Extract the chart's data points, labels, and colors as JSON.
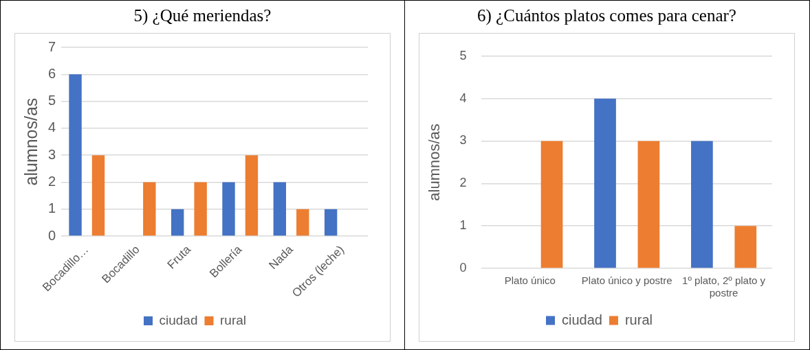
{
  "chart_data": [
    {
      "type": "bar",
      "title": "5)  ¿Qué meriendas?",
      "ylabel": "alumnos/as",
      "categories": [
        "Bocadillo…",
        "Bocadillo",
        "Fruta",
        "Bollería",
        "Nada",
        "Otros (leche)"
      ],
      "series": [
        {
          "name": "ciudad",
          "color": "#4472c4",
          "values": [
            6,
            0,
            1,
            2,
            2,
            1
          ]
        },
        {
          "name": "rural",
          "color": "#ed7d31",
          "values": [
            3,
            2,
            2,
            3,
            1,
            0
          ]
        }
      ],
      "ylim": [
        0,
        7
      ],
      "yticks": [
        0,
        1,
        2,
        3,
        4,
        5,
        6,
        7
      ],
      "grid": "y",
      "legend": "bottom"
    },
    {
      "type": "bar",
      "title": "6)  ¿Cuántos platos comes para cenar?",
      "ylabel": "alumnos/as",
      "categories": [
        "Plato único",
        "Plato único y postre",
        "1º plato, 2º plato y postre"
      ],
      "series": [
        {
          "name": "ciudad",
          "color": "#4472c4",
          "values": [
            0,
            4,
            3
          ]
        },
        {
          "name": "rural",
          "color": "#ed7d31",
          "values": [
            3,
            3,
            1
          ]
        }
      ],
      "ylim": [
        0,
        5
      ],
      "yticks": [
        0,
        1,
        2,
        3,
        4,
        5
      ],
      "grid": "y",
      "legend": "bottom"
    }
  ]
}
